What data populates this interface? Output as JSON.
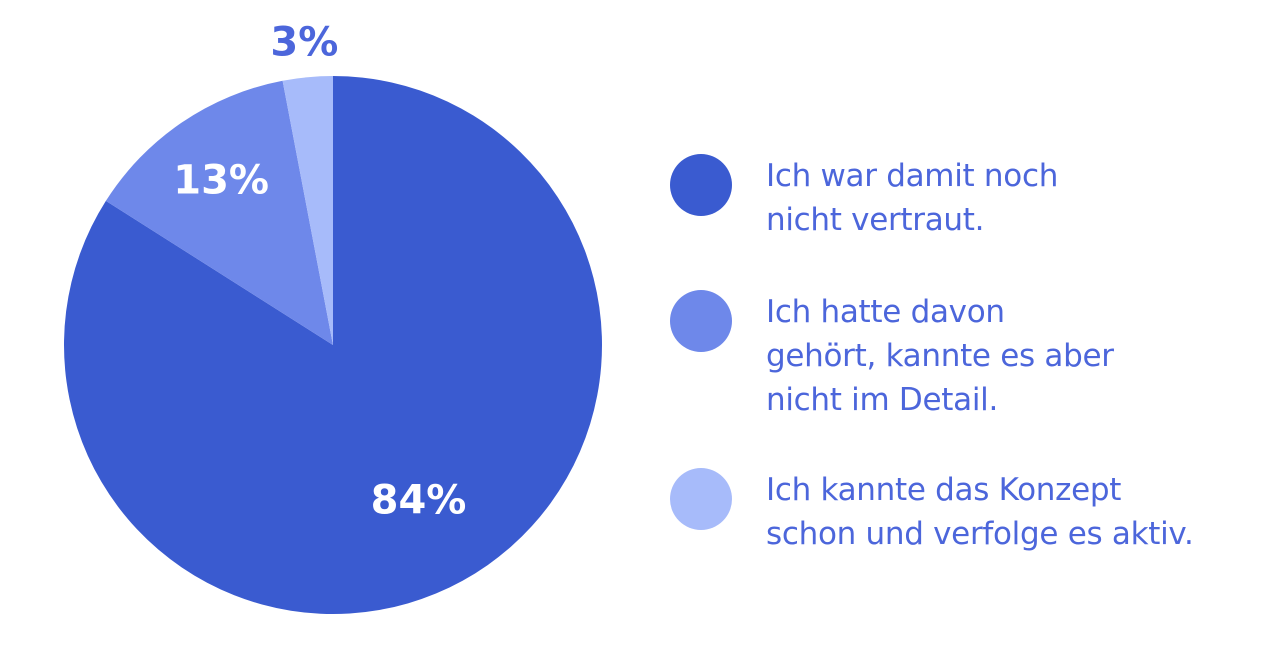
{
  "chart_data": {
    "type": "pie",
    "categories": [
      "Ich war damit noch\nnicht vertraut.",
      "Ich hatte davon\ngehört, kannte es aber\nnicht im Detail.",
      "Ich kannte das Konzept\nschon und verfolge es aktiv."
    ],
    "values": [
      84,
      13,
      3
    ],
    "labels": [
      "84%",
      "13%",
      "3%"
    ],
    "colors": [
      "#3A5BD0",
      "#6E88EA",
      "#A7BBFA"
    ],
    "legend_position": "right"
  },
  "style": {
    "text_color": "#4C66DB",
    "inside_label_color": "#FFFFFF"
  }
}
